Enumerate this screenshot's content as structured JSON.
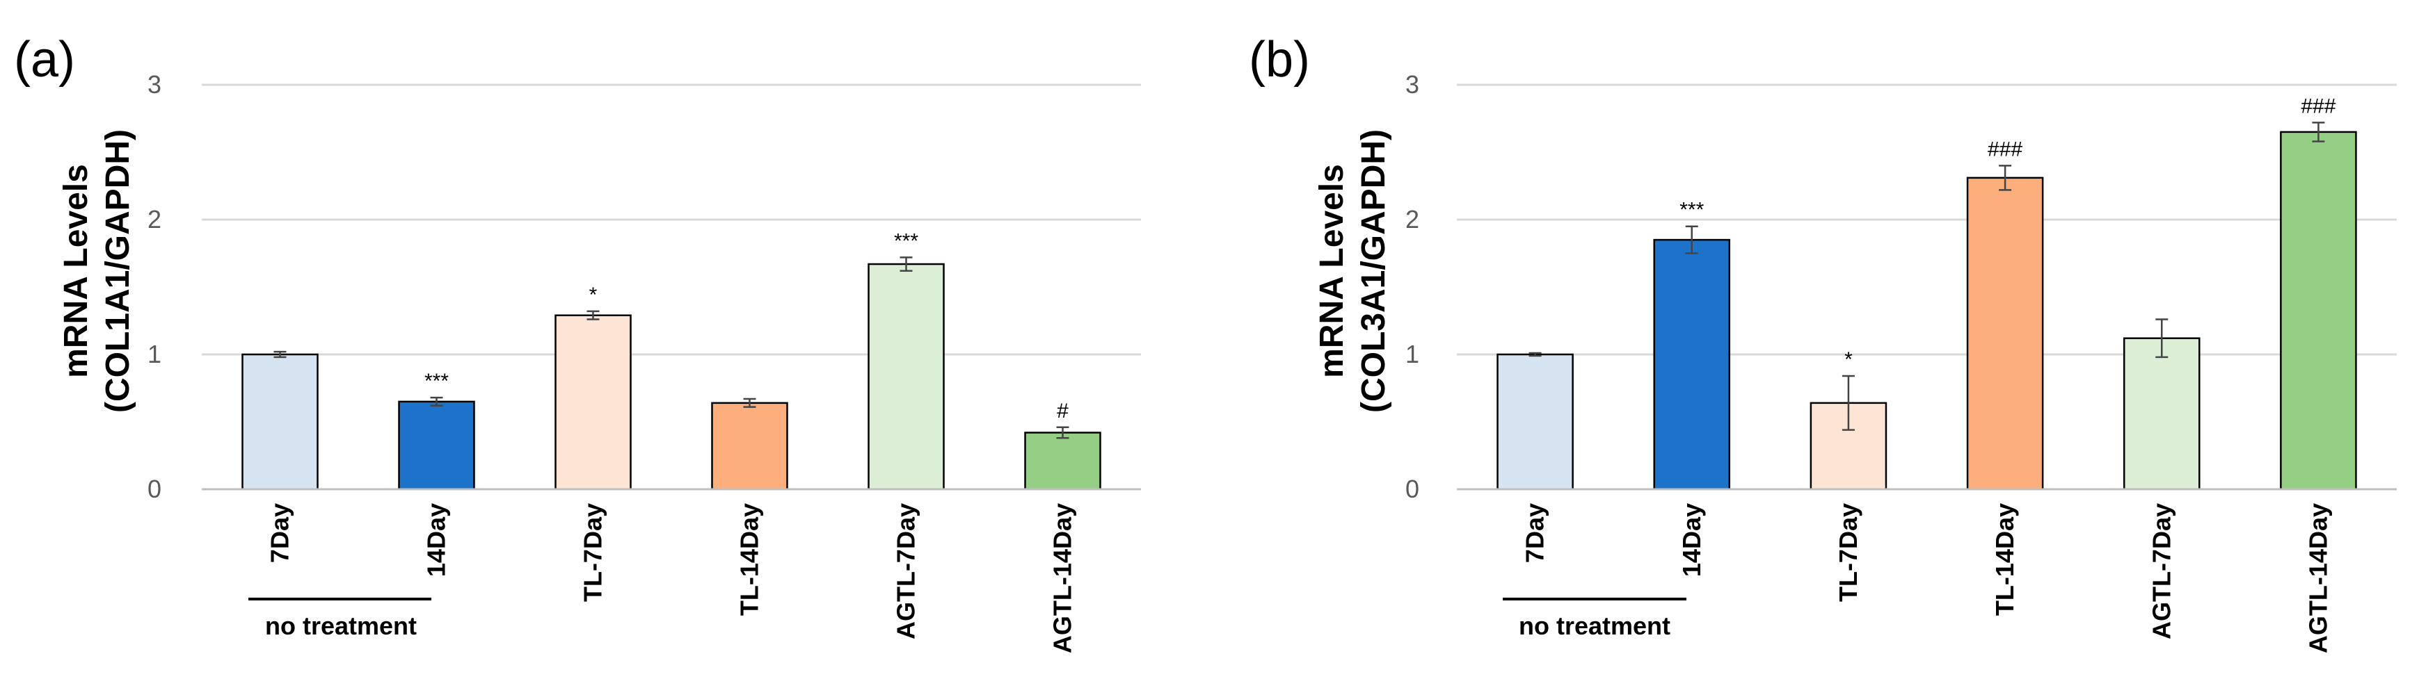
{
  "chart_data": [
    {
      "type": "bar",
      "panel_label": "(a)",
      "ylabel_line1": "mRNA Levels",
      "ylabel_line2": "(COL1A1/GAPDH)",
      "ylim": [
        0,
        3
      ],
      "yticks": [
        "0",
        "1",
        "2",
        "3"
      ],
      "grid": true,
      "categories": [
        "7Day",
        "14Day",
        "TL-7Day",
        "TL-14Day",
        "AGTL-7Day",
        "AGTL-14Day"
      ],
      "values": [
        1.0,
        0.65,
        1.29,
        0.64,
        1.67,
        0.42
      ],
      "errors": [
        0.02,
        0.03,
        0.03,
        0.03,
        0.05,
        0.04
      ],
      "annotations": [
        "",
        "***",
        "*",
        "",
        "***",
        "#"
      ],
      "colors": [
        "#d6e3f1",
        "#1d72c9",
        "#fde5d6",
        "#fcaf7d",
        "#dcefd6",
        "#94cf85"
      ],
      "group_label": "no treatment"
    },
    {
      "type": "bar",
      "panel_label": "(b)",
      "ylabel_line1": "mRNA Levels",
      "ylabel_line2": "(COL3A1/GAPDH)",
      "ylim": [
        0,
        3
      ],
      "yticks": [
        "0",
        "1",
        "2",
        "3"
      ],
      "grid": true,
      "categories": [
        "7Day",
        "14Day",
        "TL-7Day",
        "TL-14Day",
        "AGTL-7Day",
        "AGTL-14Day"
      ],
      "values": [
        1.0,
        1.85,
        0.64,
        2.31,
        1.12,
        2.65
      ],
      "errors": [
        0.01,
        0.1,
        0.2,
        0.09,
        0.14,
        0.07
      ],
      "annotations": [
        "",
        "***",
        "*",
        "###",
        "",
        "###"
      ],
      "colors": [
        "#d6e3f1",
        "#1d72c9",
        "#fde5d6",
        "#fcaf7d",
        "#dcefd6",
        "#94cf85"
      ],
      "group_label": "no treatment"
    }
  ]
}
